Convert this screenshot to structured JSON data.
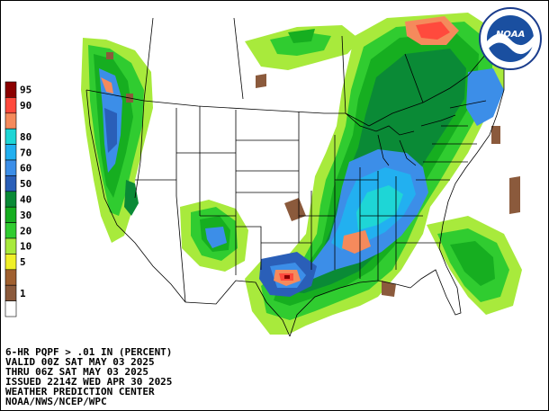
{
  "legend": {
    "classes": [
      {
        "label": "95",
        "color": "#8b0000"
      },
      {
        "label": "90",
        "color": "#ff4a3d"
      },
      {
        "label": "",
        "color": "#f58a5c"
      },
      {
        "label": "80",
        "color": "#1ed6d6"
      },
      {
        "label": "70",
        "color": "#22b0f0"
      },
      {
        "label": "60",
        "color": "#3c8ee8"
      },
      {
        "label": "50",
        "color": "#2a5fb8"
      },
      {
        "label": "40",
        "color": "#0a8a36"
      },
      {
        "label": "30",
        "color": "#16ae20"
      },
      {
        "label": "20",
        "color": "#30cc30"
      },
      {
        "label": "10",
        "color": "#a8ea3c"
      },
      {
        "label": "5",
        "color": "#f0f028"
      },
      {
        "label": "",
        "color": "#a06030"
      },
      {
        "label": "1",
        "color": "#8b5a3c"
      },
      {
        "label": "",
        "color": "#ffffff"
      }
    ]
  },
  "caption": {
    "line1": "6-HR PQPF > .01 IN (PERCENT)",
    "line2": "VALID 00Z SAT MAY 03 2025",
    "line3": "THRU 06Z SAT MAY 03 2025",
    "line4": "ISSUED 2214Z WED APR 30 2025",
    "line5": "WEATHER PREDICTION CENTER",
    "line6": "NOAA/NWS/NCEP/WPC"
  },
  "logo": {
    "text": "NOAA",
    "icon": "noaa-logo-icon"
  },
  "colors": {
    "background": "#ffffff",
    "boundary": "#000000",
    "border": "#000000"
  }
}
